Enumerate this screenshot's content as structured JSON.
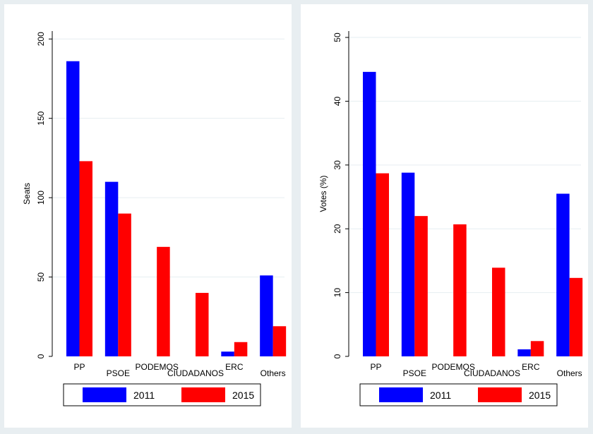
{
  "chart_data": [
    {
      "type": "bar",
      "categories": [
        "PP",
        "PSOE",
        "PODEMOS",
        "CIUDADANOS",
        "ERC",
        "Others"
      ],
      "series": [
        {
          "name": "2011",
          "color": "#0000ff",
          "values": [
            186,
            110,
            null,
            null,
            3,
            51
          ]
        },
        {
          "name": "2015",
          "color": "#ff0000",
          "values": [
            123,
            90,
            69,
            40,
            9,
            19
          ]
        }
      ],
      "ylabel": "Seats",
      "xlabel": "",
      "ylim": [
        0,
        205
      ],
      "yticks": [
        0,
        50,
        100,
        150,
        200
      ],
      "grid": true,
      "legend": "bottom"
    },
    {
      "type": "bar",
      "categories": [
        "PP",
        "PSOE",
        "PODEMOS",
        "CIUDADANOS",
        "ERC",
        "Others"
      ],
      "series": [
        {
          "name": "2011",
          "color": "#0000ff",
          "values": [
            44.6,
            28.8,
            null,
            null,
            1.1,
            25.5
          ]
        },
        {
          "name": "2015",
          "color": "#ff0000",
          "values": [
            28.7,
            22.0,
            20.7,
            13.9,
            2.4,
            12.3
          ]
        }
      ],
      "ylabel": "Votes (%)",
      "xlabel": "",
      "ylim": [
        0,
        51
      ],
      "yticks": [
        0,
        10,
        20,
        30,
        40,
        50
      ],
      "grid": true,
      "legend": "bottom"
    }
  ]
}
